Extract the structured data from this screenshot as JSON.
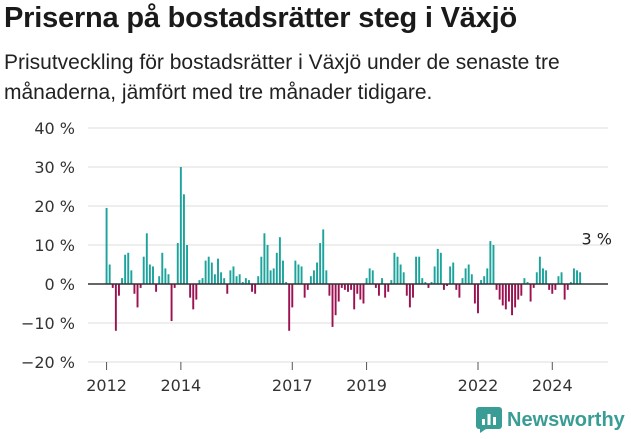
{
  "title": "Priserna på bostadsrätter steg i Växjö",
  "subtitle": "Prisutveckling för bostadsrätter i Växjö under de senaste tre månaderna, jämfört med tre månader tidigare.",
  "brand": {
    "name": "Newsworthy",
    "color": "#3a9d95",
    "icon": "newsworthy-chart-icon"
  },
  "colors": {
    "positive": "#1ba39c",
    "negative": "#9b1151",
    "grid": "#dddddd",
    "zero_line": "#333333"
  },
  "chart_data": {
    "type": "bar",
    "title": "Priserna på bostadsrätter steg i Växjö",
    "xlabel": "",
    "ylabel": "",
    "ylim": [
      -20,
      40
    ],
    "yticks": [
      -20,
      -10,
      0,
      10,
      20,
      30,
      40
    ],
    "ytick_labels": [
      "−20 %",
      "−10 %",
      "0 %",
      "10 %",
      "20 %",
      "30 %",
      "40 %"
    ],
    "xticks": [
      2012,
      2014,
      2017,
      2019,
      2022,
      2024
    ],
    "xtick_labels": [
      "2012",
      "2014",
      "2017",
      "2019",
      "2022",
      "2024"
    ],
    "x_range": [
      2011.5,
      2025.5
    ],
    "grid": true,
    "annotation": {
      "text": "3 %",
      "x": 2025.25,
      "y": 3
    },
    "series": [
      {
        "name": "Prisutveckling",
        "x_start": 2012.0,
        "x_step": 0.08333,
        "values": [
          19.5,
          5,
          -1,
          -12,
          -3,
          1.5,
          7.5,
          8,
          3.5,
          -2.5,
          -6,
          -1,
          7,
          13,
          5,
          4.5,
          -2,
          2,
          8,
          4,
          2.5,
          -9.5,
          -1,
          10.5,
          30,
          23,
          10,
          -3.5,
          -6.5,
          -4,
          1,
          1.5,
          6,
          7,
          5.5,
          2.5,
          6.5,
          3,
          1.5,
          -2.5,
          3.5,
          4.5,
          2,
          2.5,
          0.5,
          1.5,
          1,
          -2,
          -2.5,
          2,
          7,
          13,
          10,
          3.5,
          4,
          8,
          12,
          6,
          0.5,
          -12,
          -6,
          6,
          5,
          4.5,
          -3.5,
          -1.5,
          2,
          3.5,
          5.5,
          10.5,
          14,
          3.5,
          -3,
          -11,
          -8,
          -4.5,
          -1,
          -1.5,
          -2,
          -1.5,
          -6.5,
          -2.5,
          -4,
          -5,
          1.5,
          4,
          3.5,
          -1,
          -3,
          1.5,
          -3.5,
          -2,
          1,
          8,
          7,
          5,
          3,
          -3,
          -6,
          -3.5,
          7,
          7,
          1.5,
          0.5,
          -1,
          0.5,
          4.5,
          9,
          8,
          -1.5,
          -0.5,
          4.5,
          5.5,
          -1.5,
          -3.5,
          1.5,
          4,
          5,
          2.5,
          -5,
          -7.5,
          1,
          2,
          4,
          11,
          10,
          -1.5,
          -4,
          -5.5,
          -6.5,
          -4.5,
          -8,
          -6,
          -4,
          -3,
          1.5,
          0.5,
          -4.5,
          -1,
          3,
          7,
          4,
          3.5,
          -1.5,
          -2.5,
          -1.5,
          2,
          3,
          -4,
          -1.5,
          0.5,
          4,
          3.5,
          3
        ]
      }
    ]
  }
}
